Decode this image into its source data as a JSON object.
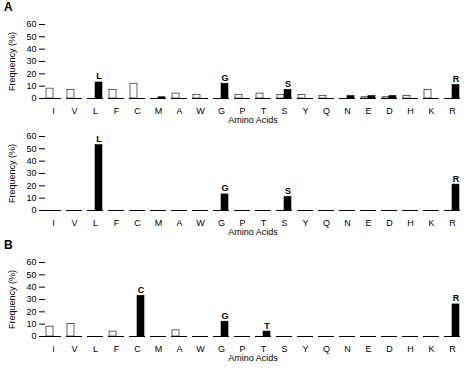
{
  "chart_data": [
    {
      "type": "bar",
      "title": "A",
      "categories": [
        "I",
        "V",
        "L",
        "F",
        "C",
        "M",
        "A",
        "W",
        "G",
        "P",
        "T",
        "S",
        "Y",
        "Q",
        "N",
        "E",
        "D",
        "H",
        "K",
        "R"
      ],
      "series": [
        {
          "color": "white",
          "values": [
            8,
            7,
            0,
            7,
            12,
            0,
            4,
            3,
            0,
            3,
            4,
            3,
            3,
            2,
            0,
            1,
            1,
            2,
            7,
            0
          ]
        },
        {
          "color": "black",
          "values": [
            0,
            0,
            13,
            0,
            0,
            1,
            0,
            0,
            12,
            0,
            0,
            7,
            0,
            0,
            2,
            2,
            2,
            0,
            0,
            11
          ]
        }
      ],
      "xlabel": "Amino Acids",
      "ylabel": "Frequency (%)",
      "ylim": [
        0,
        60
      ],
      "yticks": [
        0,
        10,
        20,
        30,
        40,
        50,
        60
      ],
      "grid": false,
      "annotations": [
        {
          "text": "L",
          "x": "L",
          "y": 13
        },
        {
          "text": "G",
          "x": "G",
          "y": 12
        },
        {
          "text": "S",
          "x": "S",
          "y": 7
        },
        {
          "text": "R",
          "x": "R",
          "y": 11
        }
      ]
    },
    {
      "type": "bar",
      "categories": [
        "I",
        "V",
        "L",
        "F",
        "C",
        "M",
        "A",
        "W",
        "G",
        "P",
        "T",
        "S",
        "Y",
        "Q",
        "N",
        "E",
        "D",
        "H",
        "K",
        "R"
      ],
      "series": [
        {
          "color": "white",
          "values": [
            0,
            0,
            0,
            0,
            0,
            0,
            0,
            0,
            0,
            0,
            0,
            0,
            0,
            0,
            0,
            0,
            0,
            0,
            0,
            0
          ]
        },
        {
          "color": "black",
          "values": [
            0,
            0,
            53,
            0,
            0,
            0,
            0,
            0,
            13,
            0,
            0,
            11,
            0,
            0,
            0,
            0,
            0,
            0,
            0,
            21
          ]
        }
      ],
      "xlabel": "Amino Acids",
      "ylabel": "Frequency (%)",
      "ylim": [
        0,
        60
      ],
      "yticks": [
        0,
        10,
        20,
        30,
        40,
        50,
        60
      ],
      "grid": false,
      "annotations": [
        {
          "text": "L",
          "x": "L",
          "y": 53
        },
        {
          "text": "G",
          "x": "G",
          "y": 13
        },
        {
          "text": "S",
          "x": "S",
          "y": 11
        },
        {
          "text": "R",
          "x": "R",
          "y": 21
        }
      ]
    },
    {
      "type": "bar",
      "title": "B",
      "categories": [
        "I",
        "V",
        "L",
        "F",
        "C",
        "M",
        "A",
        "W",
        "G",
        "P",
        "T",
        "S",
        "Y",
        "Q",
        "N",
        "E",
        "D",
        "H",
        "K",
        "R"
      ],
      "series": [
        {
          "color": "white",
          "values": [
            8,
            10,
            0,
            4,
            0,
            0,
            5,
            0,
            0,
            0,
            0,
            0,
            0,
            0,
            0,
            0,
            0,
            0,
            0,
            0
          ]
        },
        {
          "color": "black",
          "values": [
            0,
            0,
            0,
            0,
            33,
            0,
            0,
            0,
            12,
            0,
            4,
            0,
            0,
            0,
            0,
            0,
            0,
            0,
            0,
            26
          ]
        }
      ],
      "xlabel": "Amino Acids",
      "ylabel": "Frequency (%)",
      "ylim": [
        0,
        60
      ],
      "yticks": [
        0,
        10,
        20,
        30,
        40,
        50,
        60
      ],
      "grid": false,
      "annotations": [
        {
          "text": "C",
          "x": "C",
          "y": 33
        },
        {
          "text": "G",
          "x": "G",
          "y": 12
        },
        {
          "text": "T",
          "x": "T",
          "y": 4
        },
        {
          "text": "R",
          "x": "R",
          "y": 26
        }
      ]
    }
  ]
}
